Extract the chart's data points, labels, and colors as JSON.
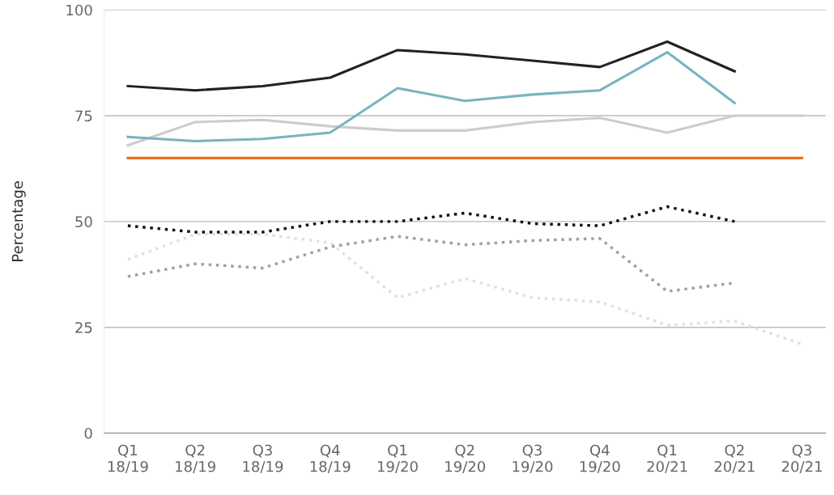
{
  "chart_data": {
    "type": "line",
    "ylabel": "Percentage",
    "categories": [
      "Q1\n18/19",
      "Q2\n18/19",
      "Q3\n18/19",
      "Q4\n18/19",
      "Q1\n19/20",
      "Q2\n19/20",
      "Q3\n19/20",
      "Q4\n19/20",
      "Q1\n20/21",
      "Q2\n20/21",
      "Q3\n20/21"
    ],
    "series": [
      {
        "color": "#cccccc",
        "line_style": "solid",
        "values": [
          68,
          73.5,
          74,
          72.5,
          71.5,
          71.5,
          73.5,
          74.5,
          71,
          75,
          75
        ]
      },
      {
        "color": "#e8731a",
        "line_style": "solid",
        "values": [
          65,
          65,
          65,
          65,
          65,
          65,
          65,
          65,
          65,
          65,
          65
        ]
      },
      {
        "color": "#78b4c0",
        "line_style": "solid",
        "values": [
          70,
          69,
          69.5,
          71,
          81.5,
          78.5,
          80,
          81,
          90,
          78,
          null
        ]
      },
      {
        "color": "#222222",
        "line_style": "solid",
        "values": [
          82,
          81,
          82,
          84,
          90.5,
          89.5,
          88,
          86.5,
          92.5,
          85.5,
          null
        ]
      },
      {
        "color": "#e0e0e0",
        "line_style": "dotted",
        "values": [
          41,
          47,
          47,
          45,
          32,
          36.5,
          32,
          31,
          25.5,
          26.5,
          21
        ]
      },
      {
        "color": "#a0a0a0",
        "line_style": "dotted",
        "values": [
          37,
          40,
          39,
          44,
          46.5,
          44.5,
          45.5,
          46,
          33.5,
          35.5,
          null
        ]
      },
      {
        "color": "#111111",
        "line_style": "dotted",
        "values": [
          49,
          47.5,
          47.5,
          50,
          50,
          52,
          49.5,
          49,
          53.5,
          50,
          null
        ]
      }
    ],
    "ylim": [
      0,
      100
    ],
    "yticks": [
      0,
      25,
      50,
      75,
      100
    ],
    "grid": "y",
    "marker": "none",
    "legend": false
  }
}
